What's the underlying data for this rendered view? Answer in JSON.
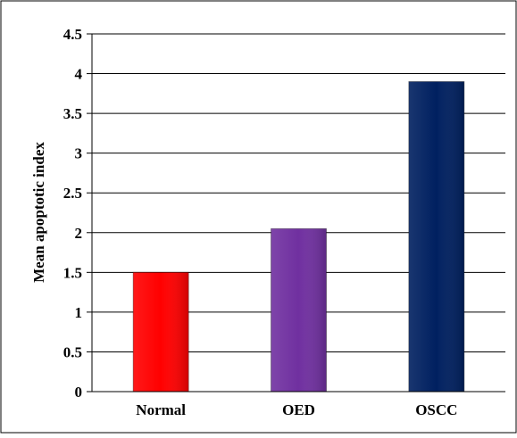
{
  "chart_data": {
    "type": "bar",
    "categories": [
      "Normal",
      "OED",
      "OSCC"
    ],
    "values": [
      1.5,
      2.05,
      3.9
    ],
    "ylabel": "Mean apoptotic index",
    "ylim": [
      0,
      4.5
    ],
    "yticks": [
      "0",
      "0.5",
      "1",
      "1.5",
      "2",
      "2.5",
      "3",
      "3.5",
      "4",
      "4.5"
    ],
    "grid": true,
    "legend": "none",
    "bar_colors": [
      "#ff0000",
      "#7030a0",
      "#002060"
    ]
  }
}
